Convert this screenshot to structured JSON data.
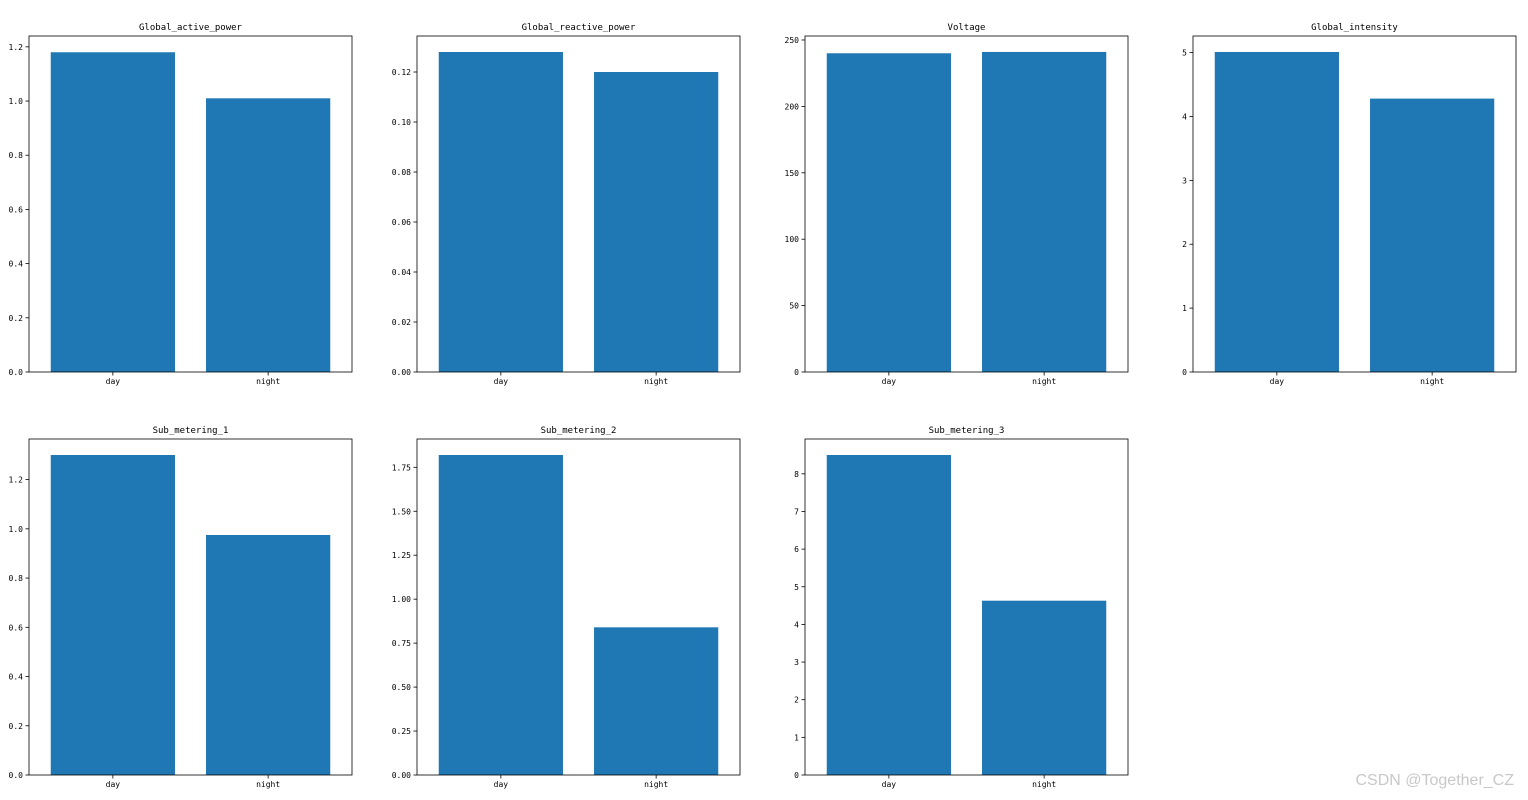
{
  "bar_color": "#1f77b4",
  "watermark": "CSDN @Together_CZ",
  "chart_data": [
    {
      "type": "bar",
      "title": "Global_active_power",
      "categories": [
        "day",
        "night"
      ],
      "values": [
        1.18,
        1.01
      ],
      "ylim": [
        0,
        1.24
      ],
      "yticks": [
        0.0,
        0.2,
        0.4,
        0.6,
        0.8,
        1.0,
        1.2
      ],
      "ytick_labels": [
        "0.0",
        "0.2",
        "0.4",
        "0.6",
        "0.8",
        "1.0",
        "1.2"
      ],
      "xlabel": "",
      "ylabel": "",
      "grid": false
    },
    {
      "type": "bar",
      "title": "Global_reactive_power",
      "categories": [
        "day",
        "night"
      ],
      "values": [
        0.128,
        0.12
      ],
      "ylim": [
        0,
        0.1344
      ],
      "yticks": [
        0.0,
        0.02,
        0.04,
        0.06,
        0.08,
        0.1,
        0.12
      ],
      "ytick_labels": [
        "0.00",
        "0.02",
        "0.04",
        "0.06",
        "0.08",
        "0.10",
        "0.12"
      ],
      "xlabel": "",
      "ylabel": "",
      "grid": false
    },
    {
      "type": "bar",
      "title": "Voltage",
      "categories": [
        "day",
        "night"
      ],
      "values": [
        240.0,
        241.0
      ],
      "ylim": [
        0,
        253
      ],
      "yticks": [
        0,
        50,
        100,
        150,
        200,
        250
      ],
      "ytick_labels": [
        "0",
        "50",
        "100",
        "150",
        "200",
        "250"
      ],
      "xlabel": "",
      "ylabel": "",
      "grid": false
    },
    {
      "type": "bar",
      "title": "Global_intensity",
      "categories": [
        "day",
        "night"
      ],
      "values": [
        5.01,
        4.28
      ],
      "ylim": [
        0,
        5.26
      ],
      "yticks": [
        0,
        1,
        2,
        3,
        4,
        5
      ],
      "ytick_labels": [
        "0",
        "1",
        "2",
        "3",
        "4",
        "5"
      ],
      "xlabel": "",
      "ylabel": "",
      "grid": false
    },
    {
      "type": "bar",
      "title": "Sub_metering_1",
      "categories": [
        "day",
        "night"
      ],
      "values": [
        1.3,
        0.975
      ],
      "ylim": [
        0,
        1.365
      ],
      "yticks": [
        0.0,
        0.2,
        0.4,
        0.6,
        0.8,
        1.0,
        1.2
      ],
      "ytick_labels": [
        "0.0",
        "0.2",
        "0.4",
        "0.6",
        "0.8",
        "1.0",
        "1.2"
      ],
      "xlabel": "",
      "ylabel": "",
      "grid": false
    },
    {
      "type": "bar",
      "title": "Sub_metering_2",
      "categories": [
        "day",
        "night"
      ],
      "values": [
        1.82,
        0.84
      ],
      "ylim": [
        0,
        1.911
      ],
      "yticks": [
        0.0,
        0.25,
        0.5,
        0.75,
        1.0,
        1.25,
        1.5,
        1.75
      ],
      "ytick_labels": [
        "0.00",
        "0.25",
        "0.50",
        "0.75",
        "1.00",
        "1.25",
        "1.50",
        "1.75"
      ],
      "xlabel": "",
      "ylabel": "",
      "grid": false
    },
    {
      "type": "bar",
      "title": "Sub_metering_3",
      "categories": [
        "day",
        "night"
      ],
      "values": [
        8.5,
        4.63
      ],
      "ylim": [
        0,
        8.925
      ],
      "yticks": [
        0,
        1,
        2,
        3,
        4,
        5,
        6,
        7,
        8
      ],
      "ytick_labels": [
        "0",
        "1",
        "2",
        "3",
        "4",
        "5",
        "6",
        "7",
        "8"
      ],
      "xlabel": "",
      "ylabel": "",
      "grid": false
    }
  ]
}
